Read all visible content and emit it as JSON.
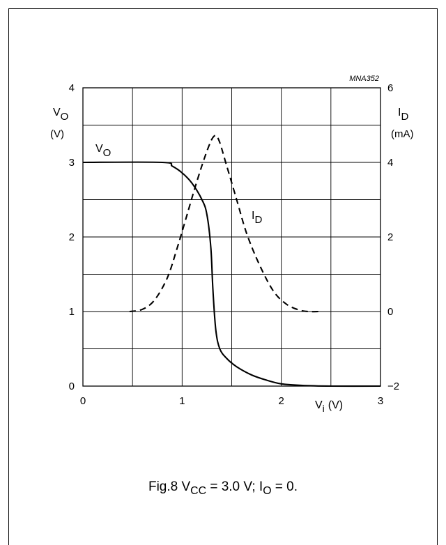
{
  "chart_data": {
    "type": "line",
    "figure_id": "MNA352",
    "left_axis": {
      "label_main": "V",
      "label_sub": "O",
      "unit": "(V)",
      "ticks": [
        0,
        1,
        2,
        3,
        4
      ],
      "ylim": [
        0,
        4
      ]
    },
    "right_axis": {
      "label_main": "I",
      "label_sub": "D",
      "unit": "(mA)",
      "ticks": [
        "−2",
        "0",
        "2",
        "4",
        "6"
      ],
      "ylim": [
        -2,
        6
      ]
    },
    "x_axis": {
      "label_main": "V",
      "label_sub": "i",
      "unit": "(V)",
      "ticks": [
        0,
        1,
        2,
        3
      ],
      "xlim": [
        0,
        3
      ]
    },
    "grid": "on",
    "series": [
      {
        "name_main": "V",
        "name_sub": "O",
        "axis": "left",
        "style": "solid",
        "points": [
          [
            0,
            3.0
          ],
          [
            0.8,
            3.0
          ],
          [
            0.9,
            2.95
          ],
          [
            1.0,
            2.86
          ],
          [
            1.1,
            2.72
          ],
          [
            1.2,
            2.5
          ],
          [
            1.25,
            2.3
          ],
          [
            1.29,
            1.85
          ],
          [
            1.31,
            1.3
          ],
          [
            1.34,
            0.75
          ],
          [
            1.38,
            0.5
          ],
          [
            1.45,
            0.37
          ],
          [
            1.55,
            0.26
          ],
          [
            1.7,
            0.15
          ],
          [
            1.85,
            0.08
          ],
          [
            2.0,
            0.03
          ],
          [
            2.2,
            0.01
          ],
          [
            2.5,
            0.0
          ],
          [
            3.0,
            0.0
          ]
        ]
      },
      {
        "name_main": "I",
        "name_sub": "D",
        "axis": "right",
        "style": "dashed",
        "points": [
          [
            0.47,
            0.0
          ],
          [
            0.6,
            0.06
          ],
          [
            0.72,
            0.3
          ],
          [
            0.85,
            0.9
          ],
          [
            0.95,
            1.7
          ],
          [
            1.05,
            2.6
          ],
          [
            1.15,
            3.5
          ],
          [
            1.25,
            4.3
          ],
          [
            1.32,
            4.7
          ],
          [
            1.37,
            4.6
          ],
          [
            1.45,
            3.9
          ],
          [
            1.55,
            3.0
          ],
          [
            1.65,
            2.1
          ],
          [
            1.78,
            1.25
          ],
          [
            1.92,
            0.55
          ],
          [
            2.05,
            0.2
          ],
          [
            2.18,
            0.04
          ],
          [
            2.27,
            0.0
          ],
          [
            2.38,
            0.0
          ]
        ]
      }
    ]
  },
  "caption": {
    "prefix": "Fig.8  V",
    "vcc_sub": "CC",
    "vcc_value": " = 3.0 V; I",
    "io_sub": "O",
    "io_value": " = 0."
  }
}
